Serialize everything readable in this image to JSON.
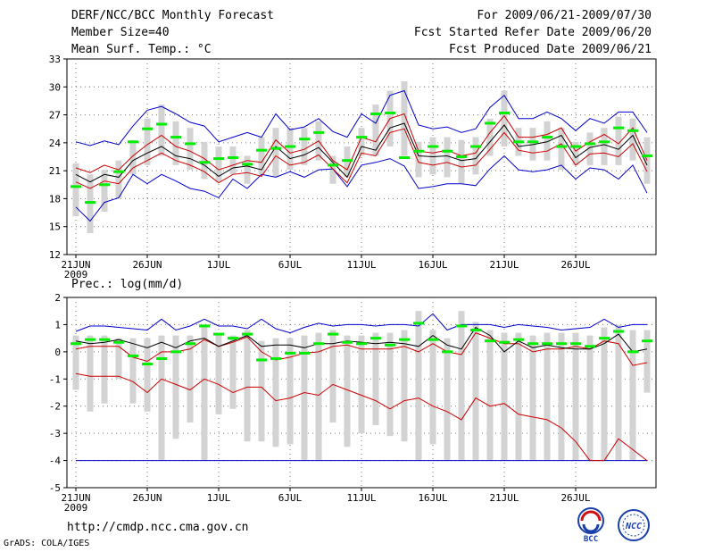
{
  "header": {
    "title": "DERF/NCC/BCC Monthly Forecast",
    "member_size": "Member Size=40",
    "variable": "Mean Surf. Temp.: °C",
    "period": "For 2009/06/21-2009/07/30",
    "started": "Fcst Started Refer Date 2009/06/20",
    "produced": "Fcst Produced Date 2009/06/21"
  },
  "footer": {
    "url": "http://cmdp.ncc.cma.gov.cn",
    "credit": "GrADS: COLA/IGES"
  },
  "logos": {
    "bcc_text": "BCC",
    "ncc_text": "NCC"
  },
  "colors": {
    "max_min": "#0000cc",
    "percentile": "#cc0000",
    "median": "#000000",
    "mean": "#00ee00",
    "box": "#d3d3d3"
  },
  "chart_data": [
    {
      "type": "line",
      "title": "Mean Surf. Temp.: °C",
      "ylim": [
        12,
        33
      ],
      "yticks": [
        12,
        15,
        18,
        21,
        24,
        27,
        30,
        33
      ],
      "x_tick_labels": [
        "21JUN",
        "26JUN",
        "1JUL",
        "6JUL",
        "11JUL",
        "16JUL",
        "21JUL",
        "26JUL"
      ],
      "x_tick_days": [
        1,
        6,
        11,
        16,
        21,
        26,
        31,
        36
      ],
      "x_year_label": "2009",
      "days": 40,
      "series": [
        {
          "name": "max",
          "values": [
            24.1,
            23.7,
            24.2,
            23.8,
            25.8,
            27.5,
            27.9,
            27.1,
            26.2,
            25.8,
            24.1,
            24.6,
            25.1,
            24.6,
            27.1,
            25.4,
            25.7,
            26.6,
            25.2,
            24.6,
            27.1,
            26.1,
            29.1,
            29.6,
            25.9,
            25.5,
            25.7,
            25.1,
            25.5,
            27.8,
            29.1,
            26.6,
            26.6,
            27.3,
            26.6,
            25.3,
            26.6,
            26.1,
            27.3,
            27.3,
            25.1
          ]
        },
        {
          "name": "p_upper",
          "values": [
            21.3,
            20.8,
            21.6,
            21.1,
            22.6,
            23.8,
            24.8,
            23.6,
            23.1,
            22.3,
            21.1,
            21.6,
            22.1,
            21.9,
            24.3,
            22.9,
            23.3,
            24.2,
            22.1,
            21.1,
            24.6,
            24.1,
            26.6,
            27.1,
            23.1,
            22.9,
            23.2,
            22.6,
            22.9,
            25.1,
            26.9,
            24.6,
            24.6,
            24.9,
            25.6,
            23.1,
            24.1,
            24.9,
            23.9,
            25.6,
            22.1
          ]
        },
        {
          "name": "median",
          "values": [
            20.6,
            19.8,
            20.6,
            20.3,
            22.1,
            22.9,
            23.6,
            22.6,
            22.3,
            21.6,
            20.4,
            21.3,
            21.5,
            21.1,
            23.6,
            22.3,
            22.7,
            23.5,
            21.9,
            20.3,
            23.6,
            23.2,
            25.6,
            26.1,
            22.6,
            22.5,
            22.6,
            22.1,
            22.3,
            24.1,
            25.9,
            23.6,
            23.8,
            24.1,
            24.8,
            22.4,
            23.5,
            23.8,
            23.3,
            24.8,
            21.6
          ]
        },
        {
          "name": "p_lower",
          "values": [
            19.8,
            19.1,
            19.9,
            19.6,
            21.3,
            22.1,
            22.9,
            22.1,
            21.6,
            20.9,
            19.7,
            20.6,
            20.8,
            20.4,
            22.6,
            21.6,
            21.9,
            22.7,
            21.2,
            19.7,
            22.9,
            22.6,
            25.1,
            25.5,
            21.9,
            21.6,
            21.9,
            21.4,
            21.6,
            23.3,
            25.1,
            23.2,
            22.9,
            23.1,
            23.9,
            21.6,
            22.8,
            22.9,
            22.5,
            23.9,
            20.9
          ]
        },
        {
          "name": "min",
          "values": [
            17.1,
            15.6,
            17.6,
            18.1,
            20.6,
            19.6,
            20.6,
            19.9,
            19.1,
            18.8,
            18.1,
            20.1,
            19.1,
            20.6,
            20.3,
            20.9,
            20.3,
            21.1,
            21.2,
            19.3,
            21.6,
            21.9,
            22.3,
            21.5,
            19.1,
            19.3,
            19.6,
            19.6,
            19.4,
            21.2,
            22.6,
            21.1,
            20.9,
            21.1,
            21.6,
            20.1,
            21.3,
            21.1,
            20.1,
            21.6,
            18.6
          ]
        },
        {
          "name": "mean",
          "values": [
            19.3,
            17.6,
            19.5,
            20.9,
            24.1,
            25.5,
            26.0,
            24.6,
            23.9,
            21.9,
            22.3,
            22.4,
            21.7,
            23.2,
            23.4,
            23.6,
            24.4,
            25.1,
            21.6,
            22.1,
            24.6,
            27.1,
            27.2,
            22.4,
            23.1,
            23.6,
            23.1,
            22.5,
            23.6,
            26.1,
            27.2,
            24.1,
            24.1,
            24.6,
            23.6,
            23.6,
            23.9,
            24.1,
            25.6,
            25.3,
            22.6
          ]
        },
        {
          "name": "box_top",
          "values": [
            21.8,
            20.6,
            21.1,
            22.1,
            24.3,
            26.6,
            28.1,
            26.3,
            25.6,
            24.1,
            23.6,
            23.6,
            22.6,
            24.6,
            25.6,
            25.6,
            25.6,
            26.3,
            22.6,
            23.6,
            25.6,
            28.1,
            29.6,
            30.6,
            24.1,
            24.6,
            24.6,
            24.3,
            24.6,
            26.6,
            29.6,
            25.6,
            25.6,
            26.3,
            25.6,
            24.1,
            25.1,
            25.6,
            26.8,
            26.6,
            24.6
          ]
        },
        {
          "name": "box_bottom",
          "values": [
            16.1,
            14.3,
            16.6,
            18.1,
            20.6,
            21.6,
            22.6,
            21.6,
            21.1,
            20.1,
            19.8,
            20.6,
            19.6,
            20.6,
            20.3,
            21.1,
            21.6,
            22.1,
            19.6,
            20.3,
            22.6,
            22.6,
            23.6,
            22.6,
            20.3,
            20.6,
            20.3,
            19.6,
            20.6,
            22.6,
            23.6,
            22.6,
            22.1,
            22.1,
            21.1,
            21.6,
            21.6,
            21.6,
            21.6,
            22.1,
            19.6
          ]
        }
      ]
    },
    {
      "type": "line",
      "title": "Prec.: log(mm/d)",
      "ylim": [
        -5,
        2
      ],
      "yticks": [
        -5,
        -4,
        -3,
        -2,
        -1,
        0,
        1,
        2
      ],
      "x_tick_labels": [
        "21JUN",
        "26JUN",
        "1JUL",
        "6JUL",
        "11JUL",
        "16JUL",
        "21JUL",
        "26JUL"
      ],
      "x_tick_days": [
        1,
        6,
        11,
        16,
        21,
        26,
        31,
        36
      ],
      "x_year_label": "2009",
      "days": 40,
      "series": [
        {
          "name": "max",
          "values": [
            0.75,
            0.95,
            0.95,
            0.9,
            0.85,
            0.8,
            1.2,
            0.8,
            0.95,
            1.2,
            0.95,
            0.95,
            0.85,
            1.2,
            0.85,
            0.7,
            0.9,
            1.05,
            0.95,
            1.0,
            1.0,
            0.95,
            1.0,
            1.0,
            0.95,
            1.4,
            0.8,
            1.0,
            1.0,
            1.0,
            0.9,
            1.0,
            0.95,
            0.9,
            0.8,
            0.85,
            0.9,
            1.2,
            0.9,
            1.0,
            1.0
          ]
        },
        {
          "name": "p_upper",
          "values": [
            0.1,
            0.2,
            0.2,
            0.2,
            -0.2,
            -0.35,
            0.0,
            0.0,
            0.1,
            0.45,
            0.2,
            0.35,
            0.55,
            0.0,
            -0.3,
            -0.2,
            -0.05,
            0.0,
            0.2,
            0.25,
            0.1,
            0.1,
            0.1,
            0.2,
            0.0,
            0.3,
            0.0,
            -0.1,
            0.7,
            0.5,
            0.3,
            0.3,
            0.0,
            0.1,
            0.1,
            0.2,
            0.1,
            0.4,
            0.3,
            -0.5,
            -0.4
          ]
        },
        {
          "name": "median",
          "values": [
            0.4,
            0.3,
            0.35,
            0.45,
            0.3,
            0.15,
            0.35,
            0.15,
            0.4,
            0.5,
            0.2,
            0.4,
            0.6,
            0.2,
            0.25,
            0.25,
            0.15,
            0.3,
            0.3,
            0.4,
            0.35,
            0.3,
            0.35,
            0.3,
            0.2,
            0.6,
            0.25,
            0.1,
            0.9,
            0.6,
            0.0,
            0.4,
            0.15,
            0.25,
            0.15,
            0.1,
            0.1,
            0.3,
            0.65,
            0.0,
            0.1
          ]
        },
        {
          "name": "p_lower",
          "values": [
            -0.8,
            -0.9,
            -0.9,
            -0.9,
            -1.1,
            -1.5,
            -1.0,
            -1.2,
            -1.4,
            -1.0,
            -1.2,
            -1.5,
            -1.3,
            -1.3,
            -1.8,
            -1.7,
            -1.5,
            -1.6,
            -1.2,
            -1.4,
            -1.6,
            -1.8,
            -2.1,
            -1.8,
            -1.7,
            -2.0,
            -2.2,
            -2.5,
            -1.7,
            -2.0,
            -1.9,
            -2.3,
            -2.4,
            -2.5,
            -2.8,
            -3.3,
            -4.0,
            -4.0,
            -3.2,
            -3.6,
            -4.0
          ]
        },
        {
          "name": "min",
          "values": [
            -4.0,
            -4.0,
            -4.0,
            -4.0,
            -4.0,
            -4.0,
            -4.0,
            -4.0,
            -4.0,
            -4.0,
            -4.0,
            -4.0,
            -4.0,
            -4.0,
            -4.0,
            -4.0,
            -4.0,
            -4.0,
            -4.0,
            -4.0,
            -4.0,
            -4.0,
            -4.0,
            -4.0,
            -4.0,
            -4.0,
            -4.0,
            -4.0,
            -4.0,
            -4.0,
            -4.0,
            -4.0,
            -4.0,
            -4.0,
            -4.0,
            -4.0,
            -4.0,
            -4.0,
            -4.0,
            -4.0,
            -4.0
          ]
        },
        {
          "name": "mean",
          "values": [
            0.3,
            0.45,
            0.45,
            0.35,
            -0.15,
            -0.45,
            -0.25,
            0.0,
            0.3,
            0.95,
            0.65,
            0.5,
            0.65,
            -0.3,
            -0.25,
            -0.05,
            -0.05,
            0.3,
            0.65,
            0.35,
            0.3,
            0.5,
            0.25,
            0.45,
            1.05,
            0.45,
            0.0,
            0.95,
            0.8,
            0.4,
            0.35,
            0.45,
            0.3,
            0.3,
            0.3,
            0.3,
            0.2,
            0.5,
            0.75,
            0.0,
            0.4
          ]
        },
        {
          "name": "box_top",
          "values": [
            0.6,
            0.6,
            0.6,
            0.5,
            0.5,
            0.5,
            0.6,
            0.6,
            0.6,
            0.9,
            0.7,
            0.6,
            0.8,
            0.4,
            0.5,
            0.5,
            0.6,
            0.7,
            0.8,
            0.6,
            0.6,
            0.7,
            0.7,
            0.8,
            1.5,
            0.8,
            0.5,
            1.5,
            1.1,
            0.8,
            0.7,
            0.7,
            0.6,
            0.7,
            0.7,
            0.7,
            0.6,
            0.9,
            1.0,
            0.8,
            0.8
          ]
        },
        {
          "name": "box_bottom",
          "values": [
            -1.4,
            -2.2,
            -1.9,
            -1.0,
            -1.9,
            -2.2,
            -4.0,
            -3.2,
            -2.6,
            -4.0,
            -2.3,
            -2.1,
            -3.3,
            -3.3,
            -3.5,
            -3.4,
            -4.0,
            -4.0,
            -2.6,
            -3.5,
            -3.0,
            -2.7,
            -3.1,
            -3.3,
            -4.0,
            -3.4,
            -4.0,
            -4.0,
            -4.0,
            -4.0,
            -4.0,
            -4.0,
            -4.0,
            -4.0,
            -4.0,
            -4.0,
            -4.0,
            -4.0,
            -4.0,
            -4.0,
            -1.5
          ]
        }
      ]
    }
  ]
}
